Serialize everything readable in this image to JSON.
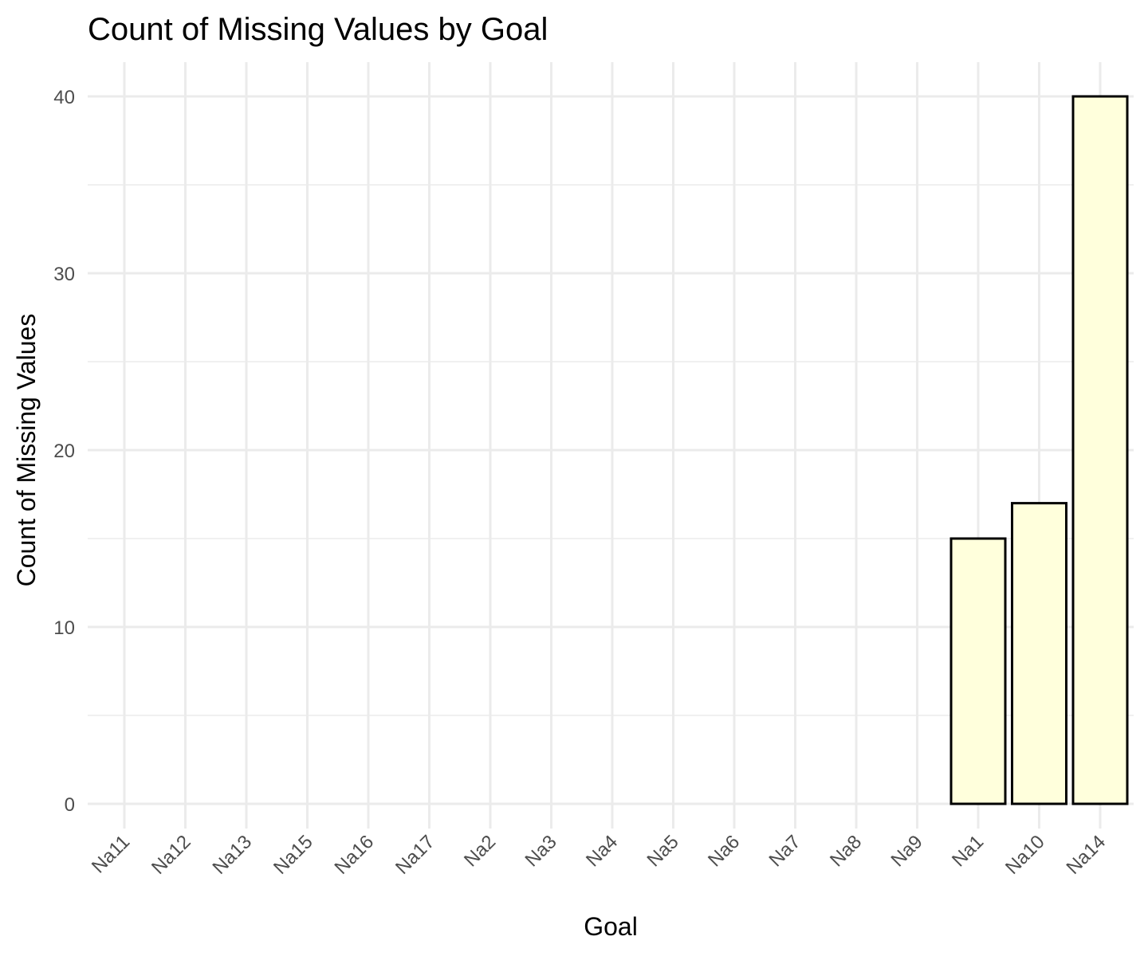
{
  "chart_data": {
    "type": "bar",
    "title": "Count of Missing Values by Goal",
    "xlabel": "Goal",
    "ylabel": "Count of Missing Values",
    "categories": [
      "Na11",
      "Na12",
      "Na13",
      "Na15",
      "Na16",
      "Na17",
      "Na2",
      "Na3",
      "Na4",
      "Na5",
      "Na6",
      "Na7",
      "Na8",
      "Na9",
      "Na1",
      "Na10",
      "Na14"
    ],
    "values": [
      0,
      0,
      0,
      0,
      0,
      0,
      0,
      0,
      0,
      0,
      0,
      0,
      0,
      0,
      15,
      17,
      40
    ],
    "ylim": [
      0,
      40
    ],
    "yticks": [
      0,
      10,
      20,
      30,
      40
    ],
    "grid": true,
    "legend": "none",
    "colors": {
      "bar_fill": "#ffffdc",
      "bar_outline": "#000000",
      "grid": "#ebebeb",
      "tick_text": "#4d4d4d"
    }
  }
}
